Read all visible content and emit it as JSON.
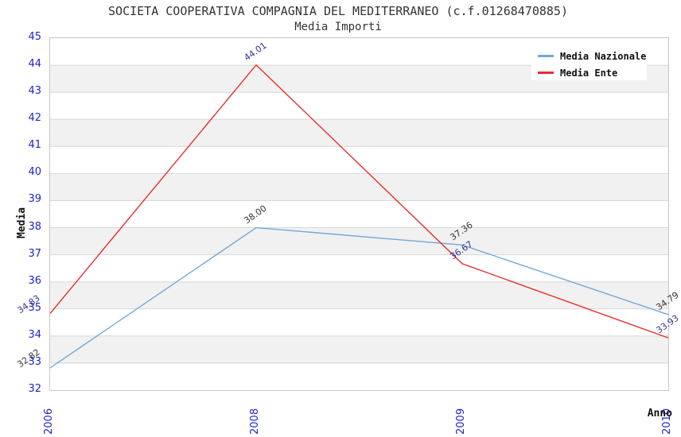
{
  "title": "SOCIETA COOPERATIVA COMPAGNIA DEL MEDITERRANEO (c.f.01268470885)",
  "subtitle": "Media Importi",
  "chart_data": {
    "type": "line",
    "categories": [
      "2006",
      "2008",
      "2009",
      "2010"
    ],
    "series": [
      {
        "name": "Media Nazionale",
        "values": [
          32.82,
          38.0,
          37.36,
          34.79
        ],
        "point_labels": [
          "32.82",
          "38.00",
          "37.36",
          "34.79"
        ],
        "color": "#74a7dc",
        "label_color": "#333333"
      },
      {
        "name": "Media Ente",
        "values": [
          34.83,
          44.01,
          36.67,
          33.93
        ],
        "point_labels": [
          "34.83",
          "44.01",
          "36.67",
          "33.93"
        ],
        "color": "#e62e2e",
        "label_color": "#333399"
      }
    ],
    "xlabel": "Anno",
    "ylabel": "Media",
    "ylim": [
      32,
      45
    ],
    "ytick_step": 1,
    "grid": true,
    "band_fill": true,
    "legend_position": "top-right",
    "value_labels": true
  },
  "colors": {
    "tick_label": "#2222cc",
    "band": "#f1f1f1",
    "gridline": "#d8d8d8",
    "plot_border": "#c8c8c8",
    "title_text": "#333333"
  }
}
